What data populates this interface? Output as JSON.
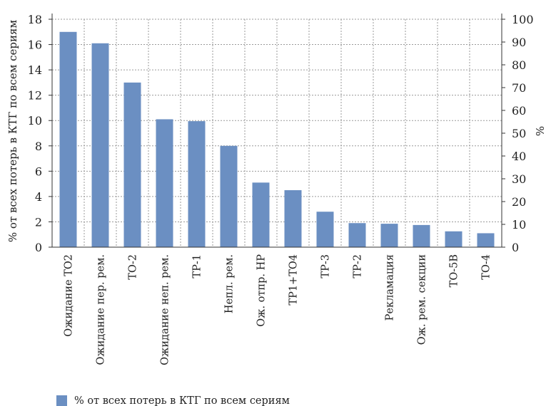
{
  "chart_data": {
    "type": "bar",
    "categories": [
      "Ожидание ТО2",
      "Ожидание пер. рем.",
      "ТО-2",
      "Ожидание неп. рем.",
      "ТР-1",
      "Непл. рем.",
      "Ож. отпр. НР",
      "ТР1+ТО4",
      "ТР-3",
      "ТР-2",
      "Рекламация",
      "Ож. рем. секции",
      "ТО-5В",
      "ТО-4"
    ],
    "series": [
      {
        "name": "% от всех потерь в КТГ по всем сериям",
        "values": [
          17.0,
          16.1,
          13.0,
          10.1,
          9.95,
          8.0,
          5.1,
          4.5,
          2.8,
          1.9,
          1.85,
          1.75,
          1.25,
          1.1
        ],
        "color": "#6b8fc2"
      }
    ],
    "ylabel": "% от всех потерь в КТГ по всем сериям",
    "ylim": [
      0,
      18
    ],
    "yticks": [
      0,
      2,
      4,
      6,
      8,
      10,
      12,
      14,
      16,
      18
    ],
    "y2label": "%",
    "y2lim": [
      0,
      100
    ],
    "y2ticks": [
      0,
      10,
      20,
      30,
      40,
      50,
      60,
      70,
      80,
      90,
      100
    ],
    "grid": true,
    "legend": "bottom-left"
  }
}
